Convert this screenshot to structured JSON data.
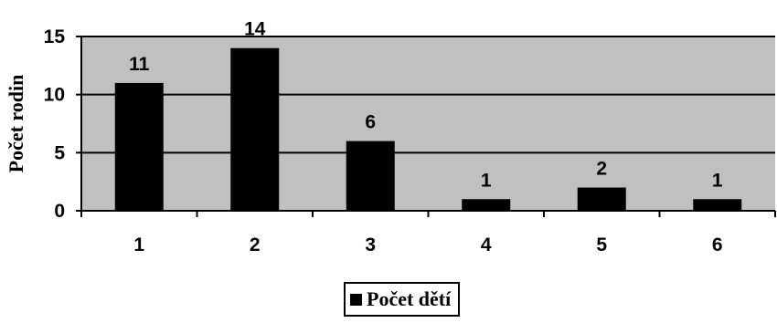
{
  "chart_data": {
    "type": "bar",
    "categories": [
      "1",
      "2",
      "3",
      "4",
      "5",
      "6"
    ],
    "series": [
      {
        "name": "Počet dětí",
        "values": [
          11,
          14,
          6,
          1,
          2,
          1
        ]
      }
    ],
    "data_labels": [
      "11",
      "14",
      "6",
      "1",
      "2",
      "1"
    ],
    "title": "",
    "xlabel": "",
    "ylabel": "Počet rodin",
    "ylim": [
      0,
      15
    ],
    "yticks": [
      0,
      5,
      10,
      15
    ],
    "grid": true,
    "legend_position": "bottom",
    "colors": {
      "plot_background": "#c0c0c0",
      "bar": "#000000",
      "gridline": "#000000"
    }
  }
}
